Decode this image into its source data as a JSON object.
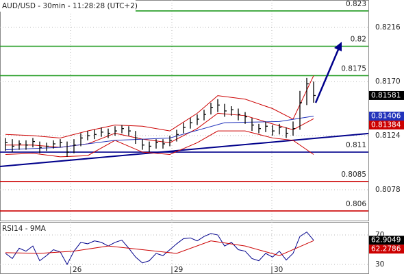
{
  "chart_data": [
    {
      "type": "ohlc",
      "title": "AUD/USD - 30min - 11:28:28 (UTC+2)",
      "xlim": [
        -0.8,
        53
      ],
      "ylim": [
        0.80518,
        0.82393
      ],
      "xticks": [
        {
          "value": 9.5,
          "label": "26"
        },
        {
          "value": 24.3,
          "label": "29"
        },
        {
          "value": 38.9,
          "label": "30"
        }
      ],
      "yticks": [
        0.8216,
        {
          "value": 0.817,
          "label": "0.8170"
        },
        0.8124,
        0.8078
      ],
      "grid": true,
      "bar_color": "#000000",
      "high": [
        0.8122,
        0.8121,
        0.812,
        0.812,
        0.8122,
        0.8119,
        0.8118,
        0.812,
        0.8121,
        0.8119,
        0.8121,
        0.8126,
        0.8128,
        0.8129,
        0.8131,
        0.813,
        0.8132,
        0.8133,
        0.8132,
        0.8128,
        0.8121,
        0.8119,
        0.8121,
        0.8121,
        0.8124,
        0.8129,
        0.8135,
        0.8139,
        0.8142,
        0.8146,
        0.8152,
        0.8155,
        0.8151,
        0.8149,
        0.8147,
        0.8144,
        0.8139,
        0.8134,
        0.8136,
        0.8133,
        0.8134,
        0.8131,
        0.8136,
        0.8162,
        0.8173,
        0.817
      ],
      "low": [
        0.8111,
        0.811,
        0.8112,
        0.8112,
        0.8114,
        0.8109,
        0.8111,
        0.8113,
        0.8114,
        0.8106,
        0.8109,
        0.8115,
        0.812,
        0.8121,
        0.8123,
        0.8122,
        0.8124,
        0.8126,
        0.8124,
        0.8117,
        0.8112,
        0.811,
        0.8113,
        0.8113,
        0.8115,
        0.8119,
        0.8126,
        0.813,
        0.8133,
        0.8137,
        0.8142,
        0.8144,
        0.814,
        0.8141,
        0.8137,
        0.8134,
        0.8128,
        0.8126,
        0.8127,
        0.8124,
        0.8125,
        0.8122,
        0.8124,
        0.8129,
        0.815,
        0.8152
      ],
      "close": [
        0.8118,
        0.8115,
        0.8117,
        0.8116,
        0.8119,
        0.8114,
        0.8115,
        0.8117,
        0.8118,
        0.811,
        0.8116,
        0.8122,
        0.8124,
        0.8125,
        0.8127,
        0.8126,
        0.8128,
        0.813,
        0.8128,
        0.8122,
        0.8116,
        0.8115,
        0.8118,
        0.8117,
        0.812,
        0.8125,
        0.8131,
        0.8135,
        0.8138,
        0.8142,
        0.8148,
        0.815,
        0.8145,
        0.8146,
        0.8142,
        0.814,
        0.8133,
        0.813,
        0.8132,
        0.8128,
        0.8131,
        0.8126,
        0.813,
        0.8152,
        0.8168,
        0.81581
      ],
      "overlays": [
        {
          "color": "#cc0000",
          "x": [
            0,
            4,
            8,
            12,
            16,
            20,
            24,
            28,
            31,
            35,
            39,
            42,
            45
          ],
          "values": [
            0.8125,
            0.8124,
            0.8122,
            0.8128,
            0.8133,
            0.8132,
            0.8128,
            0.8143,
            0.8158,
            0.8155,
            0.8147,
            0.8138,
            0.8175
          ]
        },
        {
          "color": "#cc0000",
          "x": [
            0,
            4,
            8,
            12,
            16,
            20,
            24,
            28,
            31,
            35,
            39,
            42,
            45
          ],
          "values": [
            0.8116,
            0.8116,
            0.8114,
            0.8117,
            0.8126,
            0.8121,
            0.8118,
            0.813,
            0.8143,
            0.8141,
            0.8134,
            0.8129,
            0.81384
          ]
        },
        {
          "color": "#cc0000",
          "x": [
            0,
            4,
            8,
            12,
            16,
            20,
            24,
            28,
            31,
            35,
            39,
            42,
            45
          ],
          "values": [
            0.8108,
            0.8109,
            0.8106,
            0.8107,
            0.812,
            0.811,
            0.8108,
            0.8118,
            0.8128,
            0.8128,
            0.8122,
            0.812,
            0.8108
          ]
        },
        {
          "color": "#2233bb",
          "x": [
            0,
            8,
            16,
            24,
            32,
            40,
            45
          ],
          "values": [
            0.8112,
            0.8114,
            0.812,
            0.8122,
            0.8135,
            0.8136,
            0.81406
          ]
        }
      ],
      "trendline": {
        "color": "#00008b",
        "x": [
          -0.8,
          53
        ],
        "values": [
          0.80978,
          0.81258
        ]
      },
      "levels": [
        {
          "value": 0.823,
          "color": "#1f9a1f"
        },
        {
          "value": 0.82,
          "color": "#1f9a1f"
        },
        {
          "value": 0.8175,
          "color": "#1f9a1f"
        },
        {
          "value": 0.811,
          "color": "#00008b"
        },
        {
          "value": 0.8085,
          "color": "#cc0000"
        },
        {
          "value": 0.806,
          "color": "#cc0000"
        }
      ],
      "price_labels": [
        {
          "value": 0.81581,
          "color": "#000000"
        },
        {
          "value": 0.81406,
          "color": "#2233bb"
        },
        {
          "value": 0.81384,
          "color": "#cc0000"
        }
      ]
    },
    {
      "type": "line",
      "title": "RSI14 - 9MA",
      "xlim": [
        -0.8,
        53
      ],
      "ylim": [
        17,
        87.7
      ],
      "yticks": [
        30,
        70
      ],
      "grid": true,
      "series": [
        {
          "color": "#00008b",
          "x": [
            0,
            1,
            2,
            3,
            4,
            5,
            6,
            7,
            8,
            9,
            10,
            11,
            12,
            13,
            14,
            15,
            16,
            17,
            18,
            19,
            20,
            21,
            22,
            23,
            24,
            25,
            26,
            27,
            28,
            29,
            30,
            31,
            32,
            33,
            34,
            35,
            36,
            37,
            38,
            39,
            40,
            41,
            42,
            43,
            44,
            45
          ],
          "values": [
            45,
            38,
            52,
            48,
            55,
            35,
            42,
            50,
            47,
            30,
            48,
            60,
            58,
            62,
            60,
            55,
            60,
            63,
            52,
            40,
            32,
            35,
            45,
            42,
            50,
            58,
            65,
            66,
            62,
            68,
            72,
            70,
            55,
            60,
            50,
            48,
            38,
            35,
            45,
            40,
            48,
            36,
            45,
            68,
            74,
            62.9049
          ]
        },
        {
          "color": "#cc0000",
          "x": [
            0,
            5,
            10,
            15,
            20,
            25,
            30,
            35,
            40,
            45
          ],
          "values": [
            46,
            45,
            48,
            55,
            50,
            45,
            62,
            55,
            42,
            62.2786
          ]
        }
      ],
      "price_labels": [
        {
          "value": 62.9049,
          "color": "#000000"
        },
        {
          "value": 62.2786,
          "color": "#cc0000"
        }
      ]
    }
  ]
}
